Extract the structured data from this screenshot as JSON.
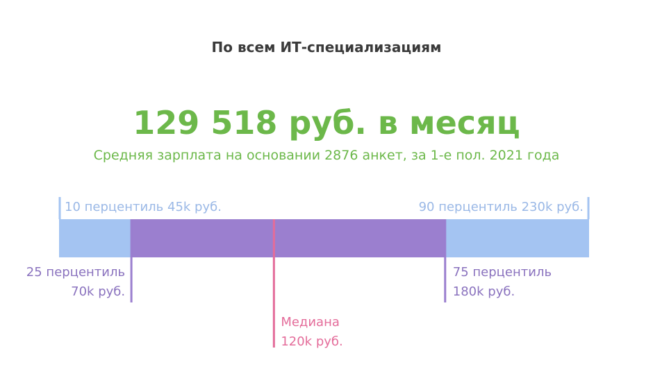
{
  "header": {
    "title": "По всем ИТ-специализациям",
    "headline": "129 518 руб. в месяц",
    "subline": "Средняя зарплата на основании 2876 анкет, за 1-е пол. 2021 года"
  },
  "chart_data": {
    "type": "range-bar",
    "unit": "k руб.",
    "p10": 45,
    "p25": 70,
    "median": 120,
    "p75": 180,
    "p90": 230,
    "labels": {
      "p10": "10 перцентиль 45k руб.",
      "p90": "90 перцентиль 230k руб.",
      "p25_line1": "25 перцентиль",
      "p25_line2": "70k руб.",
      "p75_line1": "75 перцентиль",
      "p75_line2": "180k руб.",
      "median_line1": "Медиана",
      "median_line2": "120k руб."
    },
    "colors": {
      "outer": "#a4c4f2",
      "inner": "#9b7fcf",
      "quartile_line": "#9b7fcf",
      "median_line": "#e46c9a",
      "edge_line": "#a4c4f2",
      "headline": "#6cb84a"
    }
  }
}
